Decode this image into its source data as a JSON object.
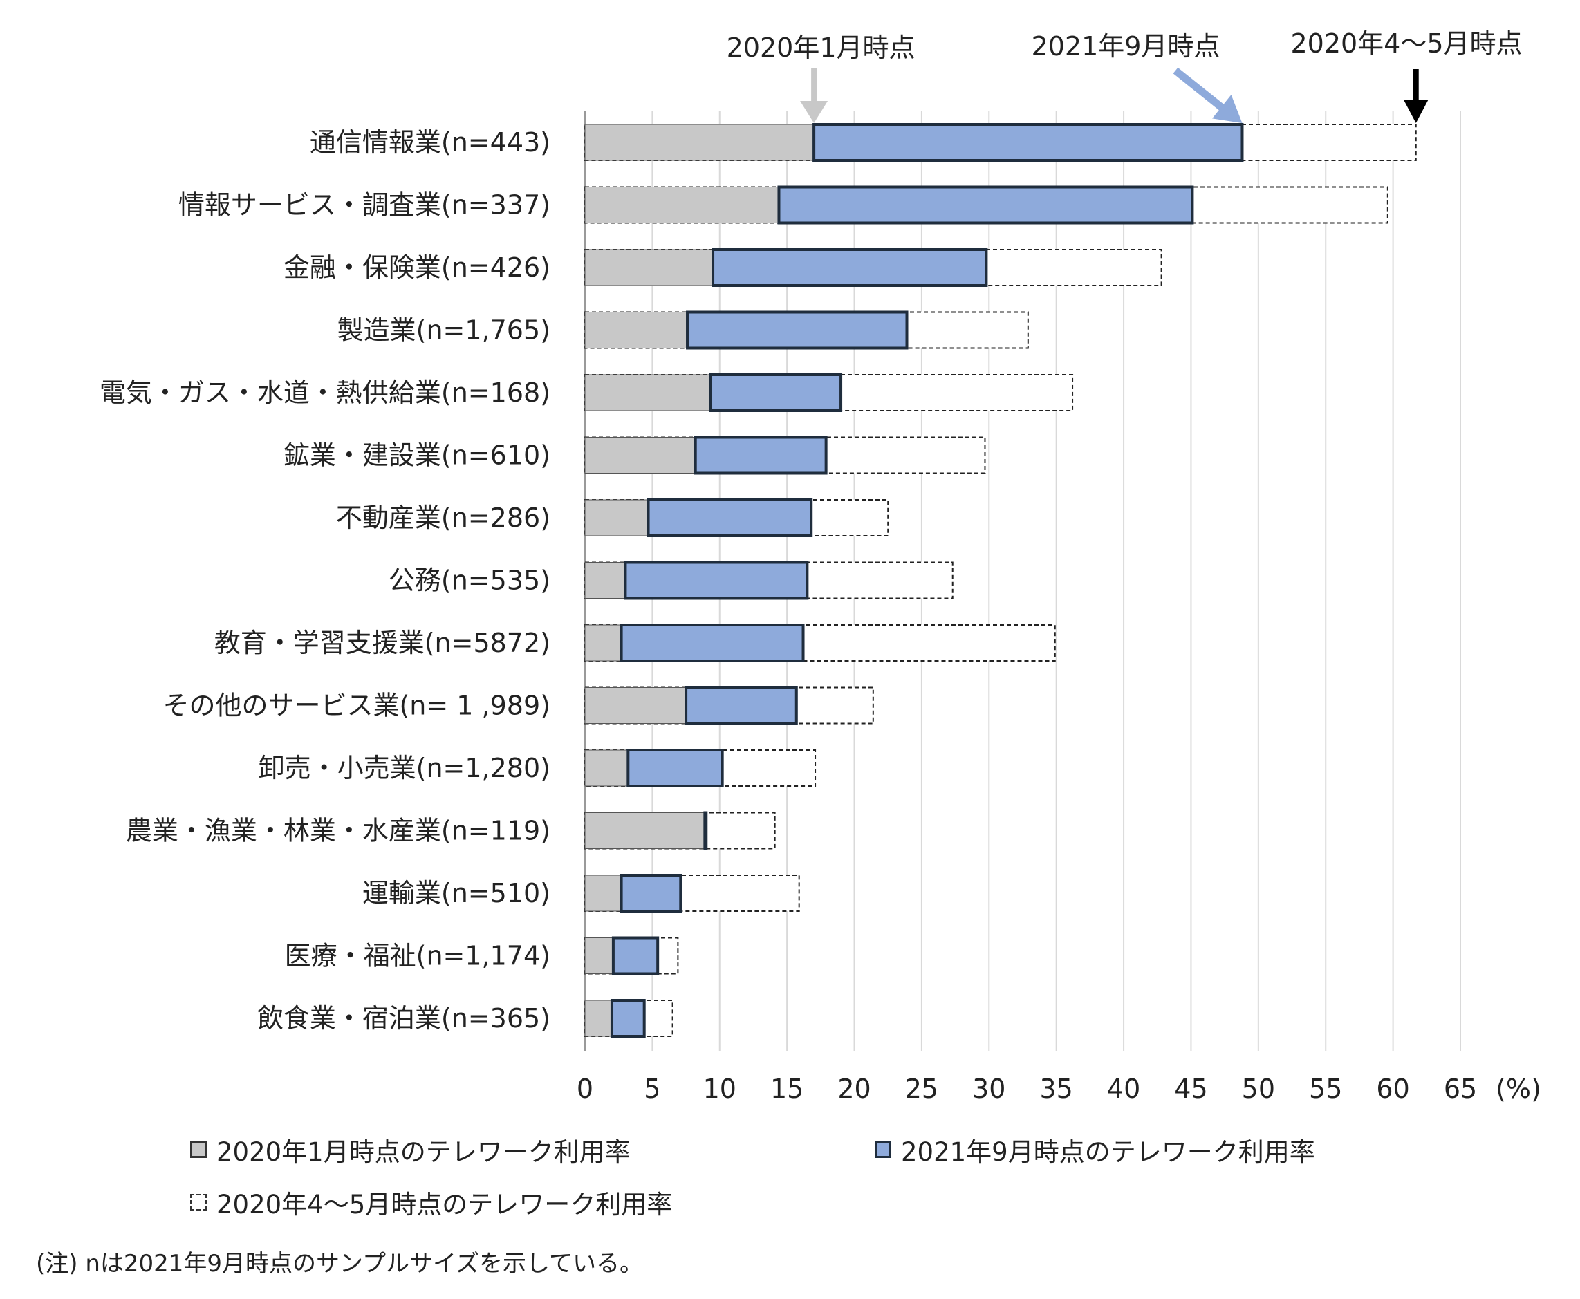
{
  "chart_data": {
    "type": "bar",
    "orientation": "horizontal",
    "categories": [
      "通信情報業(n=443)",
      "情報サービス・調査業(n=337)",
      "金融・保険業(n=426)",
      "製造業(n=1,765)",
      "電気・ガス・水道・熱供給業(n=168)",
      "鉱業・建設業(n=610)",
      "不動産業(n=286)",
      "公務(n=535)",
      "教育・学習支援業(n=5872)",
      "その他のサービス業(n= 1 ,989)",
      "卸売・小売業(n=1,280)",
      "農業・漁業・林業・水産業(n=119)",
      "運輸業(n=510)",
      "医療・福祉(n=1,174)",
      "飲食業・宿泊業(n=365)"
    ],
    "series": [
      {
        "name": "2020年1月時点のテレワーク利用率",
        "color": "#c8c8c8",
        "values": [
          17.0,
          14.4,
          9.5,
          7.6,
          9.3,
          8.2,
          4.7,
          3.0,
          2.7,
          7.5,
          3.2,
          8.9,
          2.7,
          2.1,
          2.0
        ]
      },
      {
        "name": "2021年9月時点のテレワーク利用率",
        "color": "#8eaadb",
        "values": [
          48.8,
          45.1,
          29.8,
          23.9,
          19.0,
          17.9,
          16.8,
          16.5,
          16.2,
          15.7,
          10.2,
          9.0,
          7.1,
          5.4,
          4.4
        ]
      },
      {
        "name": "2020年4～5月時点のテレワーク利用率",
        "color": "#ffffff",
        "values": [
          61.7,
          59.6,
          42.8,
          32.9,
          36.2,
          29.7,
          22.5,
          27.3,
          34.9,
          21.4,
          17.1,
          14.1,
          15.9,
          6.9,
          6.5
        ]
      }
    ],
    "xticks": [
      "0",
      "5",
      "10",
      "15",
      "20",
      "25",
      "30",
      "35",
      "40",
      "45",
      "50",
      "55",
      "60",
      "65"
    ],
    "xunit": "(%)",
    "xlim": [
      0,
      65
    ],
    "grid": "vertical",
    "legend_position": "bottom",
    "annotations": [
      {
        "text": "2020年1月時点",
        "series": 0,
        "value": 17.0,
        "arrow_color": "#c8c8c8"
      },
      {
        "text": "2021年9月時点",
        "series": 1,
        "value": 48.8,
        "arrow_color": "#8eaadb"
      },
      {
        "text": "2020年4～5月時点",
        "series": 2,
        "value": 61.7,
        "arrow_color": "#000000"
      }
    ]
  },
  "legend": {
    "jan": "2020年1月時点のテレワーク利用率",
    "sep": "2021年9月時点のテレワーク利用率",
    "apr": "2020年4～5月時点のテレワーク利用率"
  },
  "note": "(注) nは2021年9月時点のサンプルサイズを示している。"
}
